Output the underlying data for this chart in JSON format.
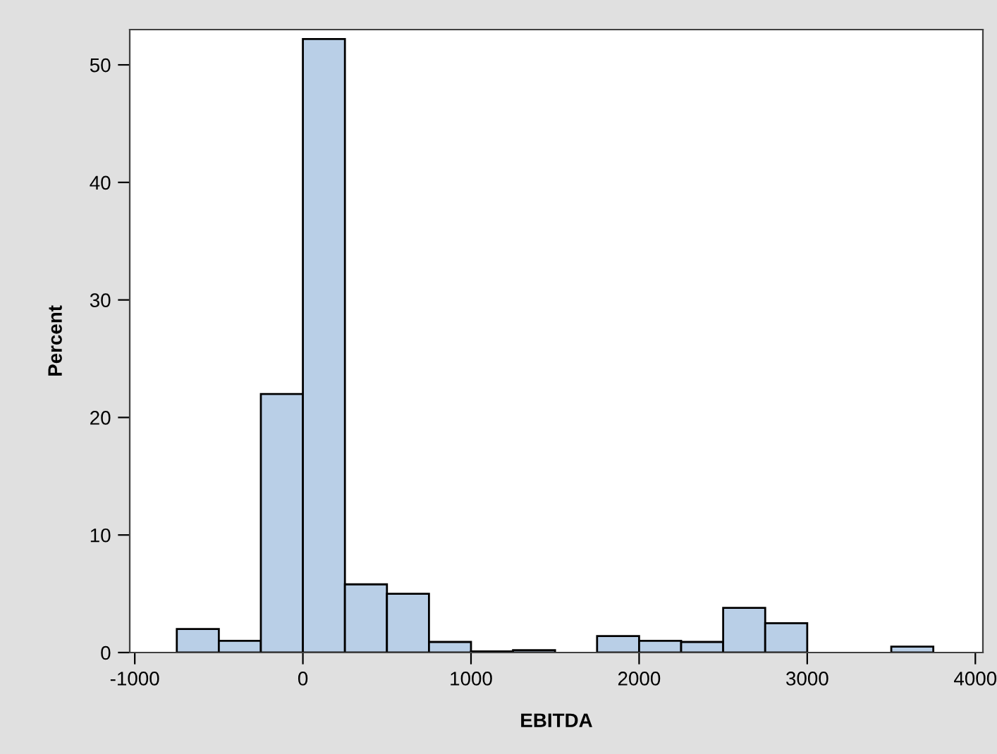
{
  "chart_data": {
    "type": "histogram",
    "xlabel": "EBITDA",
    "ylabel": "Percent",
    "bins": [
      -750,
      -500,
      -250,
      0,
      250,
      500,
      750,
      1000,
      1250,
      1500,
      1750,
      2000,
      2250,
      2500,
      2750,
      3000,
      3250,
      3500,
      3750
    ],
    "values": [
      2,
      1,
      22,
      52.2,
      5.8,
      5,
      0.9,
      0.1,
      0.2,
      0,
      1.4,
      1,
      0.9,
      3.8,
      2.5,
      0,
      0,
      0.5
    ],
    "color": "#b9cfe7",
    "xlim": [
      -1030,
      4045
    ],
    "ylim": [
      0,
      53
    ],
    "xticks": [
      -1000,
      0,
      1000,
      2000,
      3000,
      4000
    ],
    "yticks": [
      0,
      10,
      20,
      30,
      40,
      50
    ],
    "grid": false
  }
}
